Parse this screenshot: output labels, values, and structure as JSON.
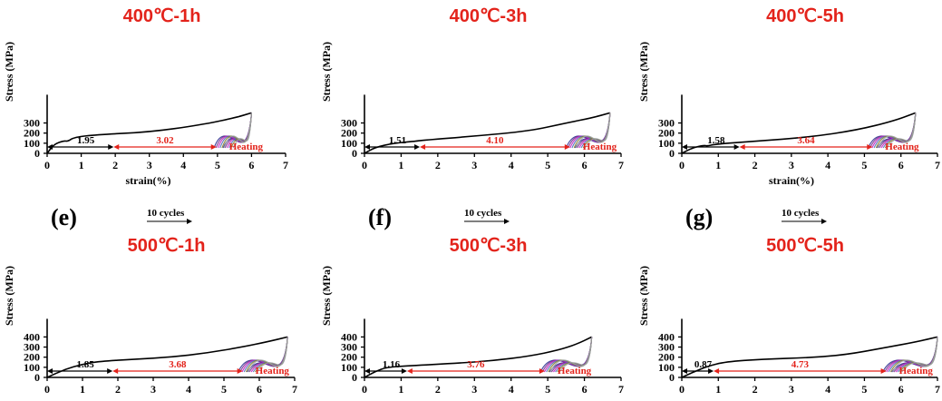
{
  "colors": {
    "title": "#e3231b",
    "red": "#e3231b",
    "black": "#000000",
    "cycles": [
      "#2e3192",
      "#7b2d8e",
      "#c21dc1",
      "#4b6cb7",
      "#8a7f2a",
      "#9aa0a6"
    ]
  },
  "chart_data": [
    {
      "type": "line",
      "letter": "",
      "title": "400℃-1h",
      "ylabel": "Stress (MPa)",
      "xlabel": "strain(%)",
      "xlim": [
        0,
        7
      ],
      "ylim": [
        0,
        400
      ],
      "xticks": [
        0,
        1,
        2,
        3,
        4,
        5,
        6,
        7
      ],
      "yticks": [
        0,
        100,
        200,
        300
      ],
      "loading_curve": [
        [
          0,
          0
        ],
        [
          0.2,
          90
        ],
        [
          0.5,
          125
        ],
        [
          0.6,
          117
        ],
        [
          0.8,
          160
        ],
        [
          1.5,
          185
        ],
        [
          3,
          210
        ],
        [
          4.5,
          280
        ],
        [
          5.5,
          350
        ],
        [
          6,
          400
        ]
      ],
      "black_label": "1.95",
      "red_label": "3.02",
      "black_arrow": [
        0,
        1.95
      ],
      "red_arrow": [
        1.95,
        4.97
      ],
      "heating_label": "Heating",
      "cycles_label": "",
      "cycles_x": [
        4.9,
        6.0
      ]
    },
    {
      "type": "line",
      "letter": "",
      "title": "400℃-3h",
      "ylabel": "Stress (MPa)",
      "xlabel": "",
      "xlim": [
        0,
        7
      ],
      "ylim": [
        0,
        400
      ],
      "xticks": [
        0,
        1,
        2,
        3,
        4,
        5,
        6,
        7
      ],
      "yticks": [
        0,
        100,
        200,
        300
      ],
      "loading_curve": [
        [
          0,
          0
        ],
        [
          0.3,
          60
        ],
        [
          0.8,
          100
        ],
        [
          1.4,
          120
        ],
        [
          1.6,
          130
        ],
        [
          3,
          170
        ],
        [
          4.5,
          220
        ],
        [
          5.5,
          300
        ],
        [
          6.2,
          350
        ],
        [
          6.7,
          400
        ]
      ],
      "black_label": "1.51",
      "red_label": "4.10",
      "black_arrow": [
        0,
        1.51
      ],
      "red_arrow": [
        1.51,
        5.61
      ],
      "heating_label": "Heating",
      "cycles_label": "",
      "cycles_x": [
        5.5,
        6.7
      ]
    },
    {
      "type": "line",
      "letter": "",
      "title": "400℃-5h",
      "ylabel": "Stress (MPa)",
      "xlabel": "strain(%)",
      "xlim": [
        0,
        7
      ],
      "ylim": [
        0,
        400
      ],
      "xticks": [
        0,
        1,
        2,
        3,
        4,
        5,
        6,
        7
      ],
      "yticks": [
        0,
        100,
        200,
        300
      ],
      "loading_curve": [
        [
          0,
          0
        ],
        [
          0.3,
          55
        ],
        [
          0.6,
          80
        ],
        [
          0.7,
          72
        ],
        [
          0.9,
          90
        ],
        [
          2,
          120
        ],
        [
          3.5,
          160
        ],
        [
          4.8,
          230
        ],
        [
          5.8,
          320
        ],
        [
          6.4,
          400
        ]
      ],
      "black_label": "1.58",
      "red_label": "3.64",
      "black_arrow": [
        0,
        1.58
      ],
      "red_arrow": [
        1.58,
        5.22
      ],
      "heating_label": "Heating",
      "cycles_label": "",
      "cycles_x": [
        5.1,
        6.4
      ]
    },
    {
      "type": "line",
      "letter": "(e)",
      "title": "500℃-1h",
      "ylabel": "Stress (MPa)",
      "xlabel": "",
      "xlim": [
        0,
        7
      ],
      "ylim": [
        0,
        400
      ],
      "xticks": [
        0,
        1,
        2,
        3,
        4,
        5,
        6,
        7
      ],
      "yticks": [
        0,
        100,
        200,
        300,
        400
      ],
      "loading_curve": [
        [
          0,
          0
        ],
        [
          0.5,
          80
        ],
        [
          1,
          130
        ],
        [
          1.5,
          160
        ],
        [
          2.5,
          180
        ],
        [
          3.5,
          200
        ],
        [
          4.5,
          240
        ],
        [
          5.5,
          300
        ],
        [
          6.2,
          350
        ],
        [
          6.8,
          400
        ]
      ],
      "black_label": "1.85",
      "red_label": "3.68",
      "black_arrow": [
        0,
        1.85
      ],
      "red_arrow": [
        1.85,
        5.53
      ],
      "heating_label": "Heating",
      "cycles_label": "10 cycles",
      "cycles_x": [
        5.4,
        6.8
      ]
    },
    {
      "type": "line",
      "letter": "(f)",
      "title": "500℃-3h",
      "ylabel": "Stress (MPa)",
      "xlabel": "",
      "xlim": [
        0,
        7
      ],
      "ylim": [
        0,
        400
      ],
      "xticks": [
        0,
        1,
        2,
        3,
        4,
        5,
        6,
        7
      ],
      "yticks": [
        0,
        100,
        200,
        300,
        400
      ],
      "loading_curve": [
        [
          0,
          0
        ],
        [
          0.3,
          60
        ],
        [
          0.6,
          100
        ],
        [
          1.2,
          115
        ],
        [
          2.5,
          140
        ],
        [
          3.5,
          165
        ],
        [
          4.5,
          210
        ],
        [
          5.3,
          270
        ],
        [
          5.8,
          330
        ],
        [
          6.2,
          400
        ]
      ],
      "black_label": "1.16",
      "red_label": "3.76",
      "black_arrow": [
        0,
        1.16
      ],
      "red_arrow": [
        1.16,
        4.92
      ],
      "heating_label": "Heating",
      "cycles_label": "10 cycles",
      "cycles_x": [
        4.8,
        6.2
      ]
    },
    {
      "type": "line",
      "letter": "(g)",
      "title": "500℃-5h",
      "ylabel": "Stress (MPa)",
      "xlabel": "",
      "xlim": [
        0,
        7
      ],
      "ylim": [
        0,
        400
      ],
      "xticks": [
        0,
        1,
        2,
        3,
        4,
        5,
        6,
        7
      ],
      "yticks": [
        0,
        100,
        200,
        300,
        400
      ],
      "loading_curve": [
        [
          0,
          0
        ],
        [
          0.3,
          50
        ],
        [
          0.7,
          110
        ],
        [
          1.2,
          155
        ],
        [
          2.2,
          180
        ],
        [
          3.5,
          195
        ],
        [
          4.5,
          225
        ],
        [
          5.5,
          290
        ],
        [
          6.4,
          350
        ],
        [
          7,
          400
        ]
      ],
      "black_label": "0.87",
      "red_label": "4.73",
      "black_arrow": [
        0,
        0.87
      ],
      "red_arrow": [
        0.87,
        5.6
      ],
      "heating_label": "Heating",
      "cycles_label": "10 cycles",
      "cycles_x": [
        5.5,
        7.0
      ]
    }
  ]
}
